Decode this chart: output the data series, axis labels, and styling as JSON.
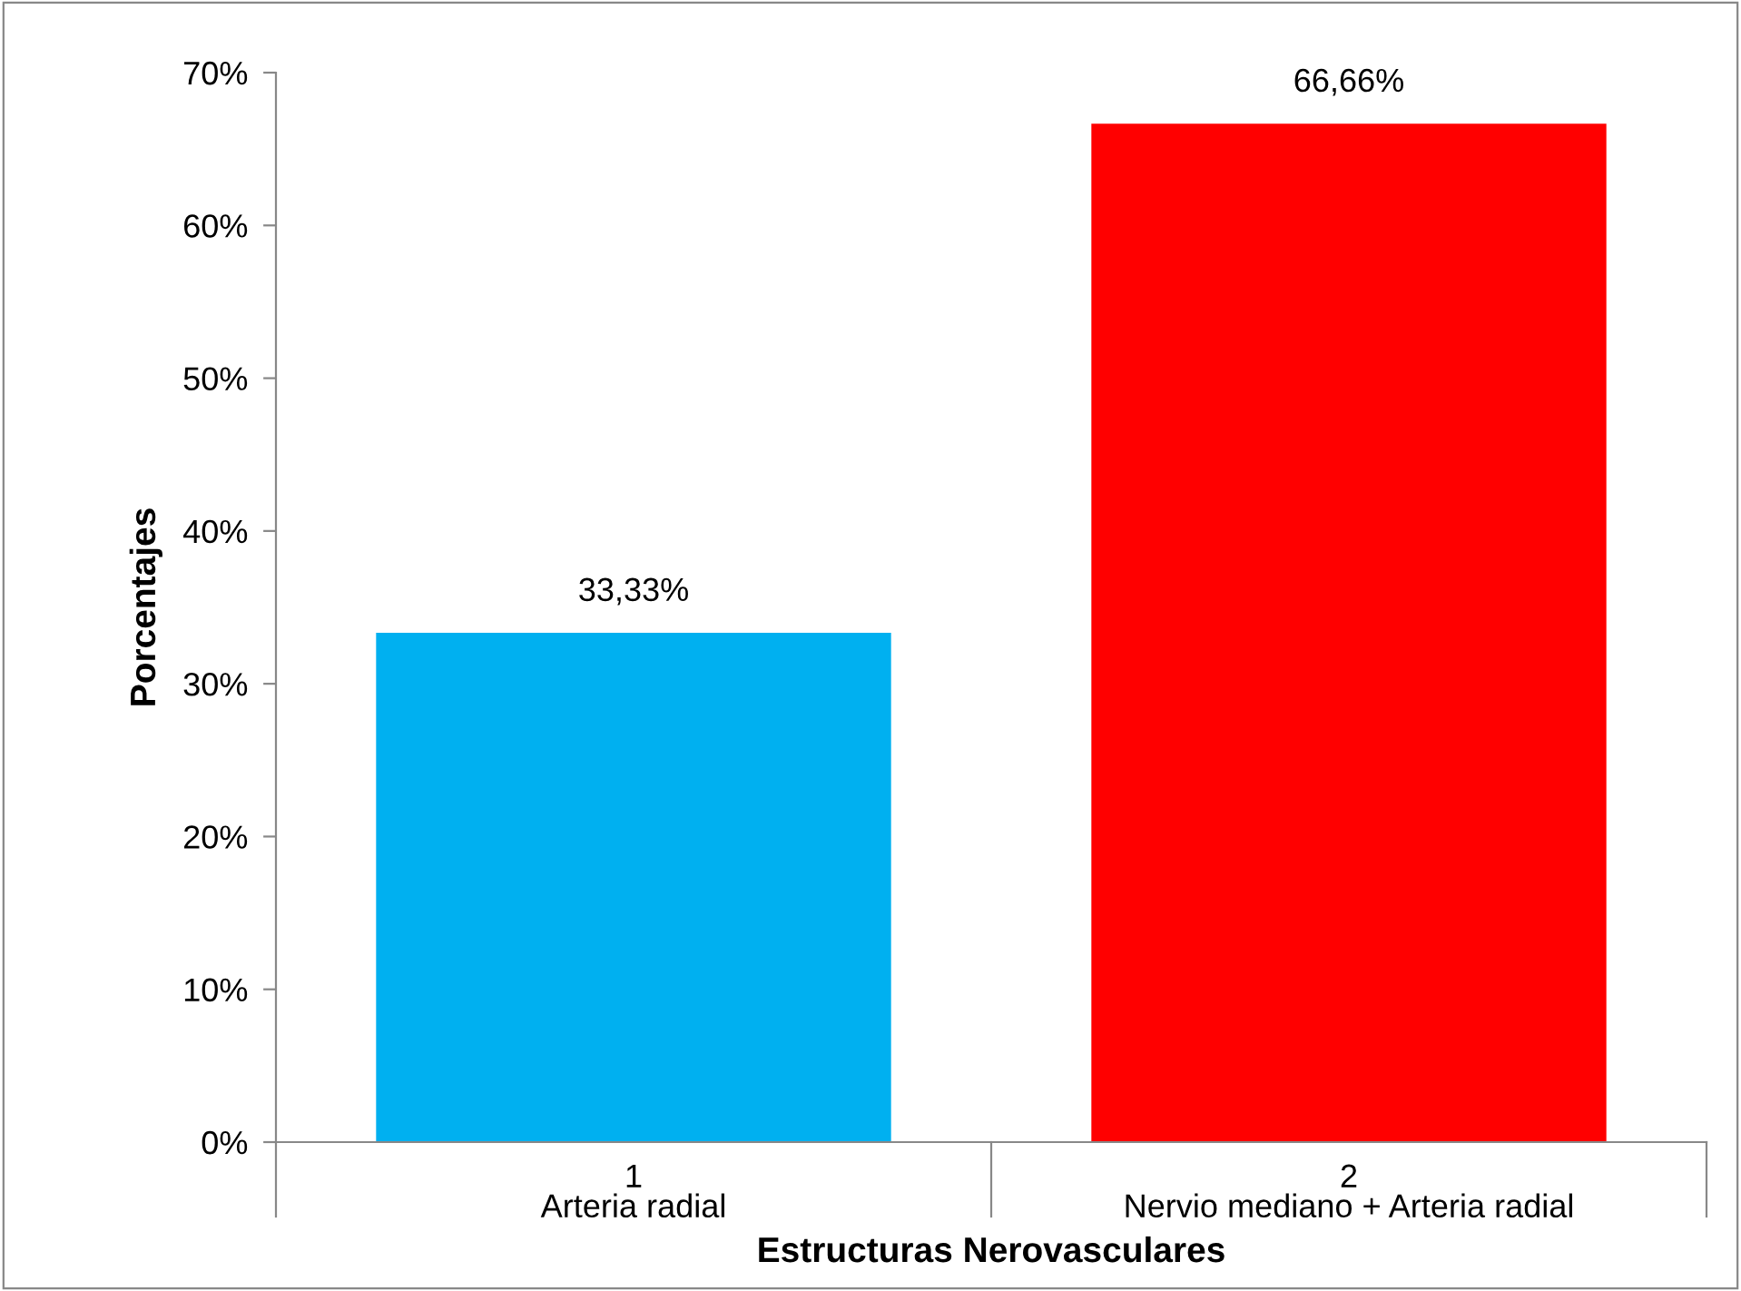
{
  "chart_data": {
    "type": "bar",
    "xlabel": "Estructuras Nerovasculares",
    "ylabel": "Porcentajes",
    "categories": [
      "1\nArteria radial",
      "2\nNervio mediano + Arteria radial"
    ],
    "values": [
      33.33,
      66.66
    ],
    "colors": [
      "#00b0f0",
      "#ff0000"
    ],
    "value_labels": [
      "33,33%",
      "66,66%"
    ],
    "ylim": [
      0,
      70
    ],
    "yticks": [
      {
        "value": 0,
        "label": "0%"
      },
      {
        "value": 10,
        "label": "10%"
      },
      {
        "value": 20,
        "label": "20%"
      },
      {
        "value": 30,
        "label": "30%"
      },
      {
        "value": 40,
        "label": "40%"
      },
      {
        "value": 50,
        "label": "50%"
      },
      {
        "value": 60,
        "label": "60%"
      },
      {
        "value": 70,
        "label": "70%"
      }
    ],
    "grid": false,
    "legend": false
  }
}
